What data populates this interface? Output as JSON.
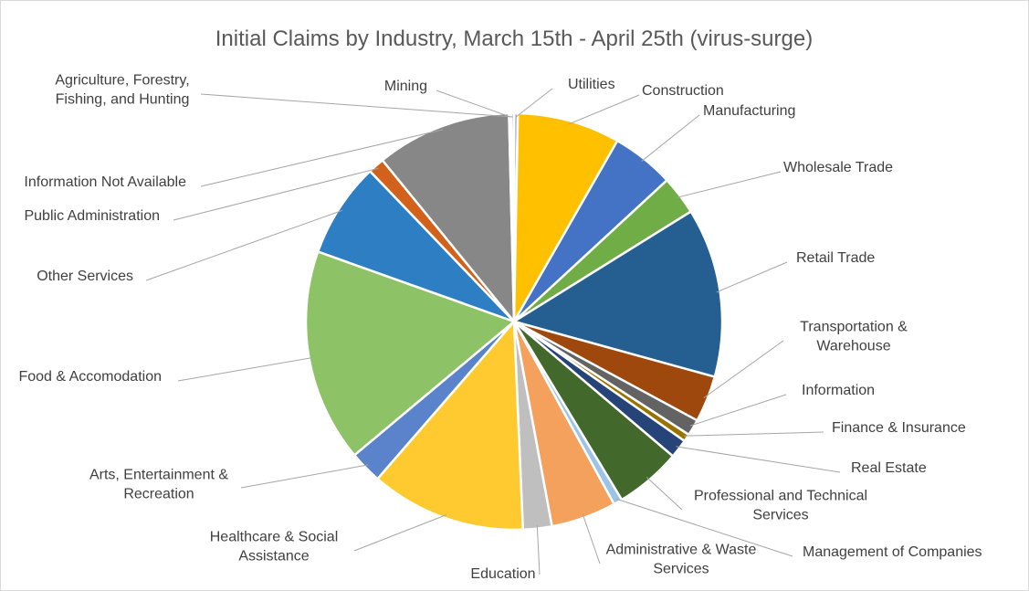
{
  "chart_data": {
    "type": "pie",
    "title": "Initial Claims by Industry, March 15th - April 25th (virus-surge)",
    "start": "top, clockwise",
    "categories": [
      "Utilities",
      "Construction",
      "Manufacturing",
      "Wholesale Trade",
      "Retail Trade",
      "Transportation & Warehouse",
      "Information",
      "Finance & Insurance",
      "Real Estate",
      "Professional and Technical Services",
      "Management of Companies",
      "Administrative & Waste Services",
      "Education",
      "Healthcare & Social Assistance",
      "Arts, Entertainment & Recreation",
      "Food & Accomodation",
      "Other Services",
      "Public Administration",
      "Information Not Available",
      "Mining",
      "Agriculture, Forestry, Fishing, and Hunting"
    ],
    "labels": [
      [
        "Utilities"
      ],
      [
        "Construction"
      ],
      [
        "Manufacturing"
      ],
      [
        "Wholesale Trade"
      ],
      [
        "Retail Trade"
      ],
      [
        "Transportation &",
        "Warehouse"
      ],
      [
        "Information"
      ],
      [
        "Finance & Insurance"
      ],
      [
        "Real Estate"
      ],
      [
        "Professional and Technical",
        "Services"
      ],
      [
        "Management of Companies"
      ],
      [
        "Administrative & Waste",
        "Services"
      ],
      [
        "Education"
      ],
      [
        "Healthcare & Social",
        "Assistance"
      ],
      [
        "Arts, Entertainment &",
        "Recreation"
      ],
      [
        "Food & Accomodation"
      ],
      [
        "Other Services"
      ],
      [
        "Public Administration"
      ],
      [
        "Information Not Available"
      ],
      [
        "Mining"
      ],
      [
        "Agriculture, Forestry,",
        "Fishing, and Hunting"
      ]
    ],
    "values": [
      0.3,
      8.2,
      5.0,
      3.1,
      13.5,
      3.7,
      1.3,
      0.6,
      1.5,
      5.3,
      0.7,
      5.2,
      2.3,
      12.4,
      2.6,
      17.0,
      7.6,
      1.3,
      10.8,
      0.2,
      0.2
    ],
    "unit": "percent of initial claims",
    "colors": [
      "#a5a5a5",
      "#ffc000",
      "#4472c4",
      "#70ad47",
      "#255e91",
      "#9e480e",
      "#636363",
      "#997300",
      "#264478",
      "#43682b",
      "#9dc3e6",
      "#f4a15d",
      "#bfbfbf",
      "#ffca2f",
      "#5b83cc",
      "#8ec266",
      "#2e7ec4",
      "#d2611c",
      "#878787",
      "#c9c9c9",
      "#3a6fb7"
    ],
    "legend": "none (labels outside with leader lines)"
  }
}
